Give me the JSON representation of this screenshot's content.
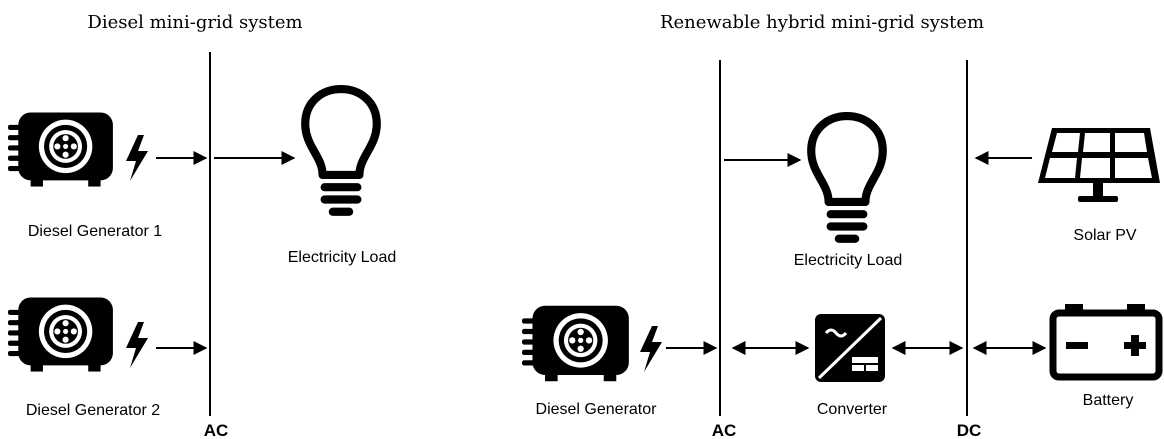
{
  "diesel_system": {
    "title": "Diesel mini-grid system",
    "bus": "AC",
    "nodes": [
      "Diesel Generator 1",
      "Diesel Generator 2",
      "Electricity Load"
    ]
  },
  "hybrid_system": {
    "title": "Renewable hybrid mini-grid system",
    "buses": [
      "AC",
      "DC"
    ],
    "nodes": [
      "Electricity Load",
      "Solar PV",
      "Diesel Generator",
      "Converter",
      "Battery"
    ]
  }
}
